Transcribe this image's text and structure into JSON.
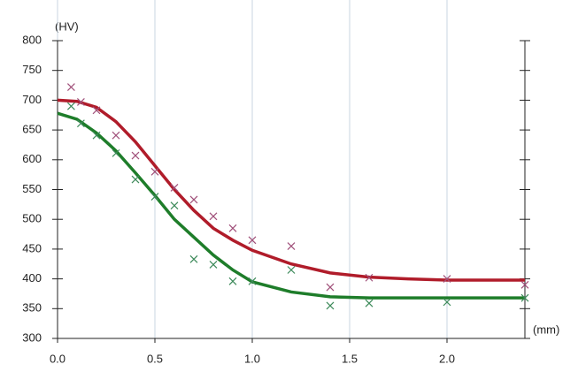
{
  "chart_data": {
    "type": "line",
    "y_label": "(HV)",
    "x_label": "(mm)",
    "xlim": [
      0,
      2.4
    ],
    "ylim": [
      300,
      800
    ],
    "xticks": [
      {
        "value": 0,
        "label": "0.0"
      },
      0.5,
      {
        "value": 1,
        "label": "1.0"
      },
      1.5,
      {
        "value": 2,
        "label": "2.0"
      }
    ],
    "yticks": [
      300,
      350,
      400,
      450,
      500,
      550,
      600,
      650,
      700,
      750,
      800
    ],
    "grid": "x",
    "series": [
      {
        "style": "line",
        "color": "#b01c2a",
        "x": [
          0,
          0.1,
          0.2,
          0.3,
          0.4,
          0.5,
          0.6,
          0.7,
          0.8,
          0.9,
          1.0,
          1.2,
          1.4,
          1.6,
          1.8,
          2.0,
          2.2,
          2.4
        ],
        "y": [
          700,
          698,
          688,
          664,
          630,
          590,
          550,
          515,
          485,
          465,
          448,
          425,
          410,
          403,
          400,
          398,
          398,
          398
        ]
      },
      {
        "style": "line",
        "color": "#1e7d2a",
        "x": [
          0,
          0.1,
          0.2,
          0.3,
          0.4,
          0.5,
          0.6,
          0.7,
          0.8,
          0.9,
          1.0,
          1.2,
          1.4,
          1.6,
          1.8,
          2.0,
          2.2,
          2.4
        ],
        "y": [
          678,
          668,
          645,
          615,
          578,
          540,
          500,
          470,
          440,
          415,
          395,
          378,
          370,
          368,
          368,
          368,
          368,
          368
        ]
      },
      {
        "style": "marker",
        "color": "#a0507a",
        "x": [
          0.07,
          0.12,
          0.2,
          0.3,
          0.4,
          0.5,
          0.6,
          0.7,
          0.8,
          0.9,
          1.0,
          1.2,
          1.4,
          1.6,
          2.0,
          2.4
        ],
        "y": [
          722,
          697,
          683,
          641,
          607,
          580,
          553,
          533,
          505,
          485,
          465,
          455,
          386,
          402,
          400,
          390
        ]
      },
      {
        "style": "marker",
        "color": "#3d8a5a",
        "x": [
          0.07,
          0.12,
          0.2,
          0.3,
          0.4,
          0.5,
          0.6,
          0.7,
          0.8,
          0.9,
          1.0,
          1.2,
          1.4,
          1.6,
          2.0,
          2.4
        ],
        "y": [
          690,
          661,
          641,
          611,
          567,
          538,
          523,
          433,
          424,
          396,
          396,
          415,
          355,
          359,
          361,
          368
        ]
      }
    ]
  }
}
